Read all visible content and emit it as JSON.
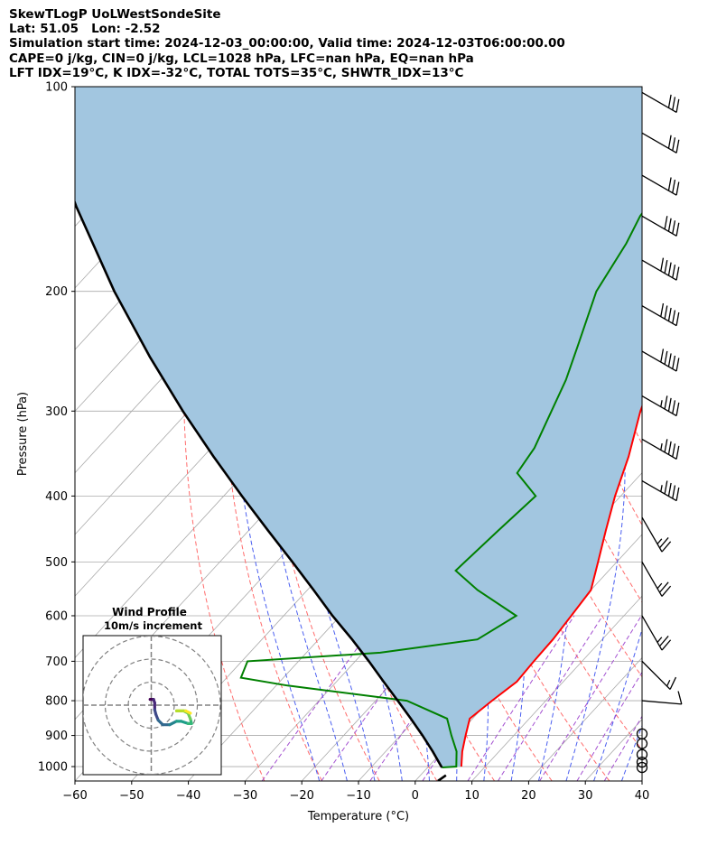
{
  "header": {
    "lines": [
      "SkewTLogP UoLWestSondeSite",
      "Lat: 51.05   Lon: -2.52",
      "Simulation start time: 2024-12-03_00:00:00, Valid time: 2024-12-03T06:00:00.00",
      "CAPE=0 j/kg, CIN=0 j/kg, LCL=1028 hPa, LFC=nan hPa, EQ=nan hPa",
      "LFT IDX=19°C, K IDX=-32°C, TOTAL TOTS=35°C, SHWTR_IDX=13°C"
    ]
  },
  "chart_data": [
    {
      "type": "line",
      "subtype": "skew-T log-P",
      "xlabel": "Temperature (°C)",
      "ylabel": "Pressure (hPa)",
      "xlim": [
        -60,
        40
      ],
      "ylim": [
        1050,
        100
      ],
      "y_scale": "log",
      "x_ticks": [
        "−60",
        "−50",
        "−40",
        "−30",
        "−20",
        "−10",
        "0",
        "10",
        "20",
        "30",
        "40"
      ],
      "x_tick_values": [
        -60,
        -50,
        -40,
        -30,
        -20,
        -10,
        0,
        10,
        20,
        30,
        40
      ],
      "y_ticks": [
        "100",
        "200",
        "300",
        "400",
        "500",
        "600",
        "700",
        "800",
        "900",
        "1000"
      ],
      "y_tick_values": [
        100,
        200,
        300,
        400,
        500,
        600,
        700,
        800,
        900,
        1000
      ],
      "grid": true,
      "colors": {
        "temperature": "#ff0000",
        "dewpoint": "#008000",
        "parcel": "#000000",
        "area": "#a2c6e0",
        "dry_adiabat": "#ff6b6b",
        "moist_adiabat": "#4a5ef0",
        "mixing_ratio": "#a34fd0",
        "isotherm": "#aaaaaa"
      },
      "series": [
        {
          "role": "temperature",
          "points": [
            [
              1000,
              5.8
            ],
            [
              950,
              3.5
            ],
            [
              900,
              1.5
            ],
            [
              850,
              -0.5
            ],
            [
              800,
              0.5
            ],
            [
              750,
              1.8
            ],
            [
              700,
              1.5
            ],
            [
              650,
              1.3
            ],
            [
              600,
              0.7
            ],
            [
              550,
              0.0
            ],
            [
              500,
              -3.3
            ],
            [
              450,
              -7.0
            ],
            [
              400,
              -11.0
            ],
            [
              350,
              -15.0
            ],
            [
              300,
              -20.3
            ],
            [
              250,
              -25.5
            ],
            [
              220,
              -30.5
            ],
            [
              200,
              -34.0
            ],
            [
              175,
              -38.0
            ],
            [
              150,
              -42.5
            ],
            [
              120,
              -47.5
            ],
            [
              100,
              -52.0
            ]
          ]
        },
        {
          "role": "dewpoint",
          "points": [
            [
              1003,
              2.5
            ],
            [
              1000,
              4.9
            ],
            [
              950,
              2.5
            ],
            [
              900,
              -1.0
            ],
            [
              850,
              -4.5
            ],
            [
              800,
              -14.5
            ],
            [
              760,
              -38.0
            ],
            [
              740,
              -47.5
            ],
            [
              700,
              -49.0
            ],
            [
              680,
              -27.0
            ],
            [
              650,
              -12.0
            ],
            [
              600,
              -9.0
            ],
            [
              550,
              -20.0
            ],
            [
              515,
              -27.0
            ],
            [
              450,
              -26.0
            ],
            [
              400,
              -25.0
            ],
            [
              370,
              -32.0
            ],
            [
              340,
              -33.0
            ],
            [
              300,
              -36.0
            ],
            [
              270,
              -38.5
            ],
            [
              240,
              -42.0
            ],
            [
              200,
              -47.5
            ],
            [
              170,
              -50.0
            ],
            [
              155,
              -52.0
            ],
            [
              140,
              -53.0
            ],
            [
              100,
              -62.0
            ]
          ]
        },
        {
          "role": "parcel",
          "points": [
            [
              1003,
              2.5
            ],
            [
              950,
              -1.7
            ],
            [
              900,
              -6.1
            ],
            [
              850,
              -10.9
            ],
            [
              800,
              -16.1
            ],
            [
              750,
              -21.7
            ],
            [
              700,
              -27.6
            ],
            [
              650,
              -34.1
            ],
            [
              600,
              -41.4
            ],
            [
              550,
              -48.9
            ],
            [
              500,
              -57.2
            ],
            [
              450,
              -66.5
            ],
            [
              400,
              -76.8
            ],
            [
              350,
              -88.2
            ],
            [
              300,
              -101.0
            ],
            [
              250,
              -115.5
            ],
            [
              200,
              -132.5
            ],
            [
              150,
              -153.0
            ],
            [
              100,
              -180.0
            ]
          ]
        }
      ],
      "wind_barbs": [
        {
          "p": 1003,
          "label": "calm"
        },
        {
          "p": 985,
          "label": "calm"
        },
        {
          "p": 960,
          "label": "calm"
        },
        {
          "p": 925,
          "label": "calm"
        },
        {
          "p": 895,
          "label": "calm"
        },
        {
          "p": 800,
          "speed_kt": 10,
          "dir": 275
        },
        {
          "p": 700,
          "speed_kt": 15,
          "dir": 315
        },
        {
          "p": 600,
          "speed_kt": 25,
          "dir": 330
        },
        {
          "p": 500,
          "speed_kt": 25,
          "dir": 330
        },
        {
          "p": 430,
          "speed_kt": 25,
          "dir": 330
        },
        {
          "p": 380,
          "speed_kt": 45,
          "dir": 300
        },
        {
          "p": 330,
          "speed_kt": 45,
          "dir": 300
        },
        {
          "p": 285,
          "speed_kt": 45,
          "dir": 300
        },
        {
          "p": 245,
          "speed_kt": 50,
          "dir": 300
        },
        {
          "p": 210,
          "speed_kt": 50,
          "dir": 300
        },
        {
          "p": 180,
          "speed_kt": 50,
          "dir": 300
        },
        {
          "p": 155,
          "speed_kt": 40,
          "dir": 300
        },
        {
          "p": 135,
          "speed_kt": 30,
          "dir": 300
        },
        {
          "p": 117,
          "speed_kt": 30,
          "dir": 300
        },
        {
          "p": 102,
          "speed_kt": 30,
          "dir": 300
        }
      ]
    },
    {
      "type": "line",
      "subtype": "hodograph",
      "title": "Wind Profile",
      "subtitle": "10m/s increment",
      "ring_step_ms": 10,
      "rings": 3,
      "colormap": "viridis",
      "points": [
        [
          -0.5,
          2.5
        ],
        [
          1.0,
          2.5
        ],
        [
          1.5,
          1.0
        ],
        [
          1.5,
          -2.0
        ],
        [
          2.0,
          -4.0
        ],
        [
          3.0,
          -6.5
        ],
        [
          5.0,
          -8.5
        ],
        [
          8.0,
          -8.5
        ],
        [
          11.0,
          -7.0
        ],
        [
          13.0,
          -7.0
        ],
        [
          16.0,
          -8.0
        ],
        [
          17.5,
          -8.0
        ],
        [
          17.0,
          -6.0
        ],
        [
          16.0,
          -3.5
        ],
        [
          14.0,
          -2.5
        ],
        [
          11.0,
          -2.5
        ],
        [
          15.0,
          -2.5
        ],
        [
          17.0,
          -3.5
        ]
      ]
    }
  ]
}
